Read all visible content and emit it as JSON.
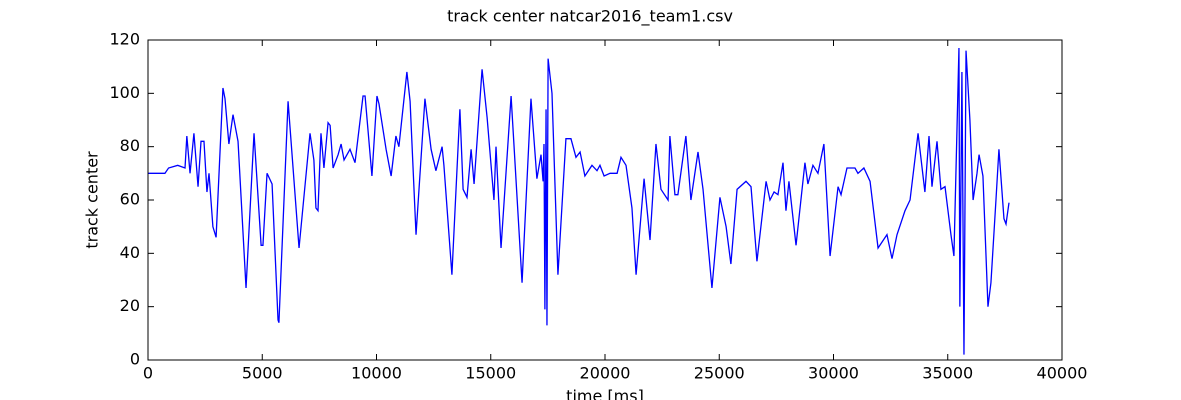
{
  "chart_data": {
    "type": "line",
    "title": "track center natcar2016_team1.csv",
    "x_label": "time [ms]",
    "y_label": "track center",
    "x": [
      0,
      740,
      900,
      1300,
      1620,
      1700,
      1840,
      2010,
      2190,
      2320,
      2450,
      2580,
      2670,
      2840,
      2980,
      3280,
      3370,
      3540,
      3720,
      3940,
      4290,
      4640,
      4950,
      5030,
      5210,
      5430,
      5690,
      5730,
      6130,
      6610,
      7090,
      7260,
      7350,
      7440,
      7570,
      7700,
      7880,
      7970,
      8100,
      8320,
      8450,
      8580,
      8840,
      9060,
      9410,
      9500,
      9800,
      10020,
      10110,
      10420,
      10640,
      10850,
      10980,
      11330,
      11470,
      11730,
      12120,
      12390,
      12600,
      12870,
      12950,
      13300,
      13650,
      13790,
      13960,
      14140,
      14270,
      14620,
      14840,
      15140,
      15230,
      15450,
      15890,
      16370,
      16760,
      17020,
      17200,
      17290,
      17330,
      17370,
      17420,
      17460,
      17510,
      17680,
      17940,
      18290,
      18510,
      18730,
      18910,
      19120,
      19430,
      19650,
      19780,
      19960,
      20220,
      20530,
      20700,
      20920,
      21180,
      21360,
      21710,
      21970,
      22230,
      22450,
      22760,
      22840,
      23060,
      23190,
      23540,
      23760,
      24070,
      24290,
      24680,
      25030,
      25300,
      25510,
      25780,
      26170,
      26390,
      26650,
      27050,
      27220,
      27400,
      27570,
      27790,
      27920,
      28050,
      28360,
      28750,
      28880,
      29100,
      29320,
      29580,
      29850,
      30200,
      30330,
      30590,
      30940,
      31070,
      31330,
      31600,
      31950,
      32340,
      32560,
      32780,
      33130,
      33350,
      33700,
      34000,
      34180,
      34310,
      34530,
      34700,
      34880,
      35140,
      35270,
      35490,
      35530,
      35620,
      35710,
      35800,
      35970,
      36110,
      36280,
      36370,
      36540,
      36760,
      36890,
      37110,
      37240,
      37460,
      37550,
      37680
    ],
    "series": [
      {
        "name": "track center",
        "color": "#0000ff",
        "values": [
          70,
          70,
          72,
          73,
          72,
          84,
          70,
          85,
          65,
          82,
          82,
          63,
          70,
          50,
          46,
          102,
          98,
          81,
          92,
          82,
          27,
          85,
          43,
          43,
          70,
          66,
          15,
          14,
          97,
          42,
          85,
          75,
          57,
          56,
          85,
          72,
          89,
          88,
          72,
          77,
          81,
          75,
          79,
          74,
          99,
          99,
          69,
          99,
          96,
          79,
          69,
          84,
          80,
          108,
          97,
          47,
          98,
          79,
          71,
          80,
          73,
          32,
          94,
          64,
          61,
          79,
          66,
          109,
          91,
          60,
          80,
          42,
          99,
          29,
          98,
          68,
          77,
          67,
          81,
          19,
          94,
          13,
          113,
          100,
          32,
          83,
          83,
          76,
          78,
          69,
          73,
          71,
          73,
          69,
          70,
          70,
          76,
          73,
          57,
          32,
          68,
          45,
          81,
          64,
          60,
          84,
          62,
          62,
          84,
          60,
          78,
          64,
          27,
          61,
          50,
          36,
          64,
          67,
          65,
          37,
          67,
          60,
          63,
          62,
          74,
          56,
          67,
          43,
          74,
          66,
          73,
          70,
          81,
          39,
          65,
          62,
          72,
          72,
          70,
          72,
          67,
          42,
          47,
          38,
          47,
          56,
          60,
          85,
          63,
          84,
          65,
          82,
          64,
          65,
          47,
          39,
          117,
          20,
          108,
          2,
          116,
          90,
          60,
          70,
          77,
          69,
          20,
          29,
          60,
          79,
          53,
          51,
          59
        ]
      }
    ],
    "xlim": [
      0,
      40000
    ],
    "xticks": [
      0,
      5000,
      10000,
      15000,
      20000,
      25000,
      30000,
      35000,
      40000
    ],
    "ylim": [
      0,
      120
    ],
    "yticks": [
      0,
      20,
      40,
      60,
      80,
      100,
      120
    ],
    "grid": false
  }
}
